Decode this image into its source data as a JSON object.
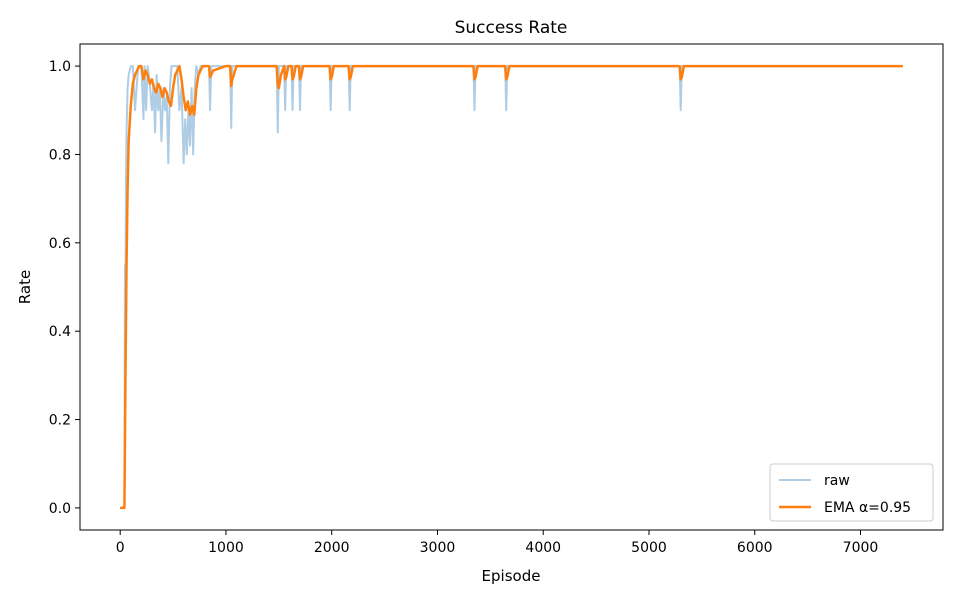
{
  "chart_data": {
    "type": "line",
    "title": "Success Rate",
    "xlabel": "Episode",
    "ylabel": "Rate",
    "xlim": [
      -380,
      7780
    ],
    "ylim": [
      -0.05,
      1.05
    ],
    "xticks": [
      0,
      1000,
      2000,
      3000,
      4000,
      5000,
      6000,
      7000
    ],
    "yticks": [
      0.0,
      0.2,
      0.4,
      0.6,
      0.8,
      1.0
    ],
    "xtick_labels": [
      "0",
      "1000",
      "2000",
      "3000",
      "4000",
      "5000",
      "6000",
      "7000"
    ],
    "ytick_labels": [
      "0.0",
      "0.2",
      "0.4",
      "0.6",
      "0.8",
      "1.0"
    ],
    "grid": false,
    "legend_position": "lower-right",
    "series": [
      {
        "name": "raw",
        "color": "#aecde4",
        "x": [
          0,
          40,
          45,
          50,
          55,
          60,
          70,
          80,
          100,
          120,
          140,
          170,
          200,
          220,
          230,
          245,
          260,
          280,
          300,
          315,
          330,
          345,
          360,
          375,
          390,
          410,
          425,
          440,
          455,
          470,
          485,
          500,
          520,
          540,
          560,
          580,
          600,
          615,
          630,
          645,
          660,
          675,
          690,
          705,
          720,
          740,
          760,
          800,
          840,
          850,
          860,
          900,
          1000,
          1040,
          1050,
          1060,
          1100,
          1480,
          1490,
          1500,
          1550,
          1560,
          1570,
          1620,
          1630,
          1640,
          1690,
          1700,
          1710,
          1980,
          1990,
          2000,
          2160,
          2170,
          2180,
          3340,
          3350,
          3360,
          3640,
          3650,
          3660,
          5290,
          5300,
          5310,
          7400
        ],
        "y": [
          0,
          0,
          0.55,
          0.5,
          0.75,
          0.85,
          0.95,
          0.98,
          1.0,
          1.0,
          0.9,
          1.0,
          1.0,
          0.88,
          1.0,
          0.9,
          1.0,
          0.96,
          0.9,
          0.96,
          0.85,
          0.98,
          0.9,
          0.95,
          0.83,
          0.95,
          0.9,
          0.93,
          0.78,
          0.95,
          1.0,
          1.0,
          1.0,
          1.0,
          0.9,
          0.95,
          0.78,
          0.88,
          0.8,
          0.9,
          0.82,
          0.95,
          0.8,
          0.95,
          1.0,
          0.98,
          1.0,
          1.0,
          1.0,
          0.9,
          1.0,
          1.0,
          1.0,
          1.0,
          0.86,
          1.0,
          1.0,
          1.0,
          0.85,
          1.0,
          1.0,
          0.9,
          1.0,
          1.0,
          0.9,
          1.0,
          1.0,
          0.9,
          1.0,
          1.0,
          0.9,
          1.0,
          1.0,
          0.9,
          1.0,
          1.0,
          0.9,
          1.0,
          1.0,
          0.9,
          1.0,
          1.0,
          0.9,
          1.0,
          1.0
        ]
      },
      {
        "name": "EMA α=0.95",
        "color": "#ff7f0e",
        "x": [
          0,
          40,
          45,
          50,
          60,
          70,
          80,
          100,
          120,
          140,
          160,
          180,
          200,
          220,
          240,
          260,
          280,
          300,
          320,
          340,
          360,
          380,
          400,
          420,
          440,
          460,
          480,
          500,
          520,
          540,
          560,
          580,
          600,
          620,
          640,
          660,
          680,
          700,
          720,
          740,
          760,
          780,
          800,
          820,
          840,
          850,
          860,
          880,
          1000,
          1040,
          1050,
          1060,
          1080,
          1100,
          1480,
          1490,
          1500,
          1520,
          1550,
          1560,
          1570,
          1590,
          1620,
          1630,
          1640,
          1660,
          1690,
          1700,
          1710,
          1730,
          1980,
          1990,
          2000,
          2020,
          2160,
          2170,
          2180,
          2200,
          3340,
          3350,
          3360,
          3380,
          3640,
          3650,
          3660,
          3680,
          5290,
          5300,
          5310,
          5330,
          7400
        ],
        "y": [
          0,
          0,
          0.15,
          0.3,
          0.55,
          0.72,
          0.83,
          0.91,
          0.96,
          0.98,
          0.99,
          1.0,
          1.0,
          0.97,
          0.99,
          0.98,
          0.96,
          0.97,
          0.95,
          0.94,
          0.96,
          0.95,
          0.93,
          0.95,
          0.94,
          0.92,
          0.91,
          0.95,
          0.98,
          0.99,
          1.0,
          0.97,
          0.93,
          0.9,
          0.92,
          0.89,
          0.91,
          0.89,
          0.95,
          0.98,
          0.99,
          1.0,
          1.0,
          1.0,
          1.0,
          0.975,
          0.98,
          0.99,
          1.0,
          1.0,
          0.955,
          0.97,
          0.985,
          1.0,
          1.0,
          0.96,
          0.95,
          0.98,
          1.0,
          0.97,
          0.975,
          1.0,
          1.0,
          0.97,
          0.975,
          1.0,
          1.0,
          0.97,
          0.975,
          1.0,
          1.0,
          0.97,
          0.975,
          1.0,
          1.0,
          0.97,
          0.975,
          1.0,
          1.0,
          0.97,
          0.975,
          1.0,
          1.0,
          0.97,
          0.975,
          1.0,
          1.0,
          0.97,
          0.975,
          1.0,
          1.0
        ]
      }
    ]
  }
}
